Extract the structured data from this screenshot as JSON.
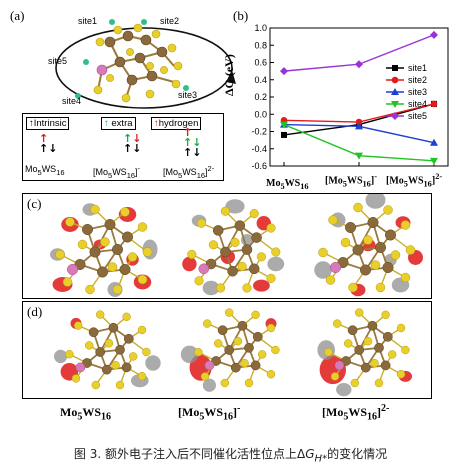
{
  "panels": {
    "a": "(a)",
    "b": "(b)",
    "c": "(c)",
    "d": "(d)"
  },
  "panel_a": {
    "sites": [
      "site1",
      "site2",
      "site5",
      "site4",
      "site3"
    ],
    "legend": {
      "intrinsic": "Intrinsic",
      "extra": "extra",
      "hydrogen": "hydrogen"
    },
    "compounds": [
      "Mo5WS16",
      "[Mo5WS16]-",
      "[Mo5WS16]2-"
    ]
  },
  "chart_data": {
    "type": "line",
    "categories": [
      "Mo5WS16",
      "[Mo5WS16]-",
      "[Mo5WS16]2-"
    ],
    "ylabel": "ΔG (eV)",
    "ylim": [
      -0.6,
      1.0
    ],
    "yticks": [
      "1.0",
      "0.8",
      "0.6",
      "0.4",
      "0.2",
      "0.0",
      "-0.2",
      "-0.4",
      "-0.6"
    ],
    "series": [
      {
        "name": "site1",
        "color": "#000000",
        "marker": "square",
        "values": [
          -0.24,
          -0.12,
          0.12
        ]
      },
      {
        "name": "site2",
        "color": "#e41a1c",
        "marker": "circle",
        "values": [
          -0.07,
          -0.09,
          0.12
        ]
      },
      {
        "name": "site3",
        "color": "#1f3fd1",
        "marker": "triangle",
        "values": [
          -0.12,
          -0.14,
          -0.33
        ]
      },
      {
        "name": "site4",
        "color": "#22c422",
        "marker": "triangle-down",
        "values": [
          -0.12,
          -0.48,
          -0.54
        ]
      },
      {
        "name": "site5",
        "color": "#9a33d6",
        "marker": "diamond",
        "values": [
          0.5,
          0.58,
          0.92
        ]
      }
    ]
  },
  "bottom_labels": [
    "Mo5WS16",
    "[Mo5WS16]-",
    "[Mo5WS16]2-"
  ],
  "caption": "图 3. 额外电子注入后不同催化活性位点上ΔG_H*的变化情况",
  "colors": {
    "s_atom": "#e9cf2a",
    "mo_atom": "#8a6a3b",
    "w_atom": "#d97ab8",
    "density_pos": "#e01818",
    "density_neg": "#8f8f8f"
  }
}
